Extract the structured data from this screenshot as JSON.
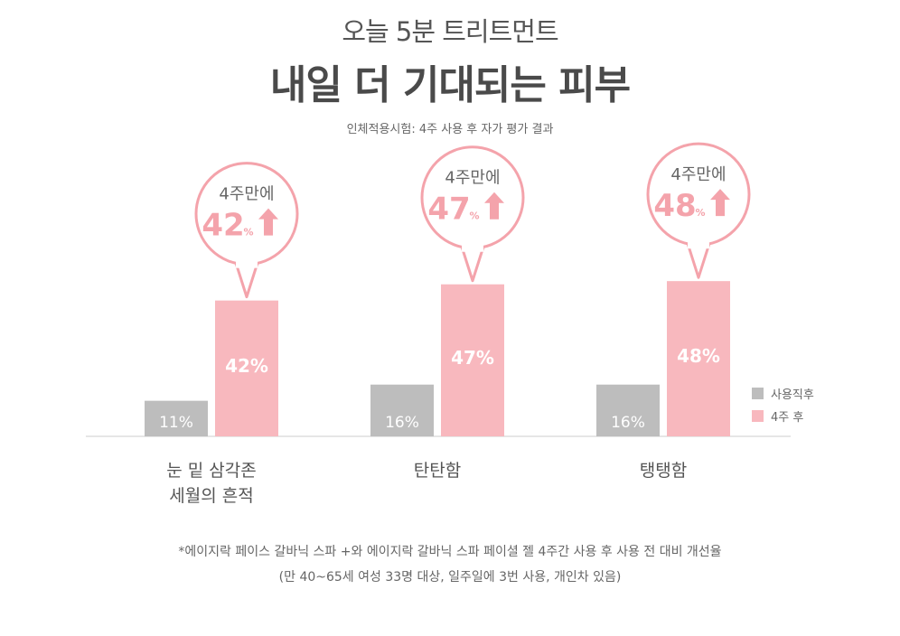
{
  "header": {
    "subtitle": "오늘 5분 트리트먼트",
    "title": "내일 더 기대되는 피부",
    "test_note": "인체적용시험: 4주 사용 후 자가 평가 결과"
  },
  "chart_data": {
    "type": "bar",
    "categories": [
      "눈 밑 삼각존\n세월의 흔적",
      "탄탄함",
      "탱탱함"
    ],
    "series": [
      {
        "name": "사용직후",
        "values": [
          11,
          16,
          16
        ],
        "color": "#bdbdbd"
      },
      {
        "name": "4주 후",
        "values": [
          42,
          47,
          48
        ],
        "color": "#f8b8be"
      }
    ],
    "value_suffix": "%",
    "ylim": [
      0,
      52
    ],
    "grid": false,
    "legend_position": "right",
    "callouts": [
      {
        "label": "4주만에",
        "value": "42",
        "unit": "%"
      },
      {
        "label": "4주만에",
        "value": "47",
        "unit": "%"
      },
      {
        "label": "4주만에",
        "value": "48",
        "unit": "%"
      }
    ],
    "callout_color": "#f4a3ab"
  },
  "footnote": {
    "line1": "*에이지락 페이스 갈바닉 스파 +와 에이지락 갈바닉 스파 페이셜 젤 4주간 사용 후 사용 전 대비 개선율",
    "line2": "(만 40~65세 여성 33명 대상, 일주일에 3번 사용, 개인차 있음)"
  }
}
